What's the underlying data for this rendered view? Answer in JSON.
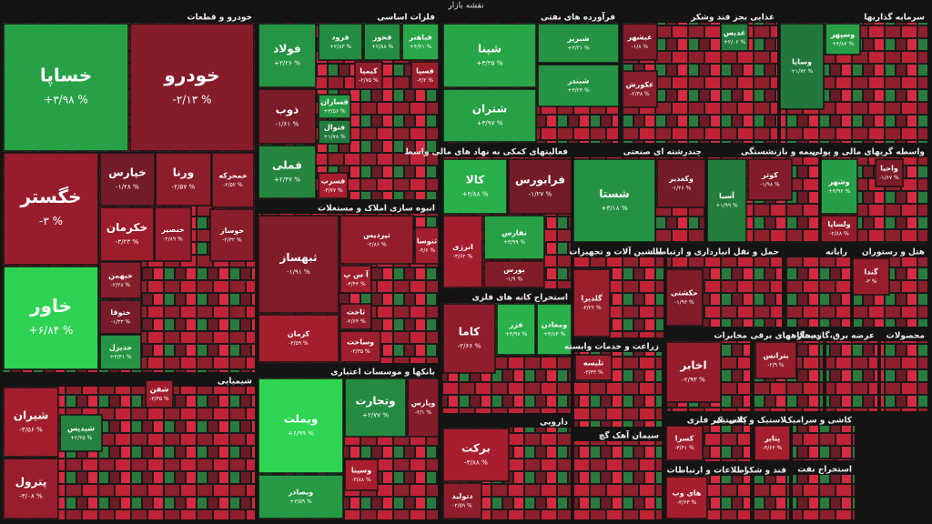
{
  "chart_data": {
    "type": "treemap",
    "title": "نقشه بازار",
    "sectors": [
      {
        "name": "خودرو و قطعات",
        "tiles": [
          {
            "name": "خساپا",
            "value": 3.98,
            "value_label": "+۳/۹۸ %"
          },
          {
            "name": "خودرو",
            "value": -2.13,
            "value_label": "-۲/۱۳ %"
          },
          {
            "name": "خگستر",
            "value": -3,
            "value_label": "-۳ %"
          },
          {
            "name": "خاور",
            "value": 6.84,
            "value_label": "+۶/۸۴ %"
          },
          {
            "name": "خپارس",
            "value": -1.28,
            "value_label": "-۱/۲۸ %"
          },
          {
            "name": "ورنا",
            "value": -2.57,
            "value_label": "-۲/۵۷ %"
          },
          {
            "name": "خمحرکه",
            "value": -2.52,
            "value_label": "-۲/۵۲ %"
          },
          {
            "name": "خکرمان",
            "value": -3.23,
            "value_label": "-۳/۲۳ %"
          },
          {
            "name": "خنصیر",
            "value": -2.89,
            "value_label": "-۲/۸۹ %"
          },
          {
            "name": "خوساز",
            "value": -2.32,
            "value_label": "-۲/۳۲ %"
          },
          {
            "name": "خبهمن",
            "value": -2.28,
            "value_label": "-۲/۲۸ %"
          },
          {
            "name": "ختوقا",
            "value": -1.33,
            "value_label": "-۱/۳۳ %"
          },
          {
            "name": "خدیزل",
            "value": 3.31,
            "value_label": "+۳/۳۱ %"
          }
        ]
      },
      {
        "name": "فلزات اساسی",
        "tiles": [
          {
            "name": "فولاد",
            "value": 3.26,
            "value_label": "+۳/۲۶ %"
          },
          {
            "name": "ذوب",
            "value": -1.61,
            "value_label": "-۱/۶۱ %"
          },
          {
            "name": "فملی",
            "value": 2.47,
            "value_label": "+۲/۴۷ %"
          },
          {
            "name": "فرود",
            "value": 2.83,
            "value_label": "+۲/۸۳ %"
          },
          {
            "name": "فخوز",
            "value": 2.88,
            "value_label": "+۲/۸۸ %"
          },
          {
            "name": "فباهنر",
            "value": 4.31,
            "value_label": "+۴/۳۱ %"
          },
          {
            "name": "کیمیا",
            "value": -2.75,
            "value_label": "-۲/۷۵ %"
          },
          {
            "name": "فسپا",
            "value": -3.2,
            "value_label": "-۳/۲ %"
          },
          {
            "name": "فسازان",
            "value": 3.56,
            "value_label": "+۳/۵۶ %"
          },
          {
            "name": "فنوال",
            "value": 1.78,
            "value_label": "+۱/۷۸ %"
          },
          {
            "name": "فسرب",
            "value": -3.77,
            "value_label": "-۳/۷۷ %"
          }
        ]
      },
      {
        "name": "انبوه سازی املاک و مستغلات",
        "tiles": [
          {
            "name": "ثبهساز",
            "value": -1.91,
            "value_label": "-۱/۹۱ %"
          },
          {
            "name": "کرمان",
            "value": -3.59,
            "value_label": "-۳/۵۹ %"
          },
          {
            "name": "ثپردیس",
            "value": -2.86,
            "value_label": "-۲/۸۶ %"
          },
          {
            "name": "ثنوسا",
            "value": -3.6,
            "value_label": "-۳/۶ %"
          },
          {
            "name": "آ س پ",
            "value": -3.43,
            "value_label": "-۳/۴۳ %"
          },
          {
            "name": "ثاخت",
            "value": -2.64,
            "value_label": "-۲/۶۴ %"
          },
          {
            "name": "وساخت",
            "value": -3.35,
            "value_label": "-۳/۳۵ %"
          }
        ]
      },
      {
        "name": "بانکها و موسسات اعتباری",
        "tiles": [
          {
            "name": "وبملت",
            "value": 6.99,
            "value_label": "+۶/۹۹ %"
          },
          {
            "name": "وتجارت",
            "value": 2.77,
            "value_label": "+۲/۷۷ %"
          },
          {
            "name": "وپارس",
            "value": -2.1,
            "value_label": "-۲/۱ %"
          },
          {
            "name": "وبصادر",
            "value": 3.59,
            "value_label": "+۳/۵۹ %"
          },
          {
            "name": "وسینا",
            "value": -3.88,
            "value_label": "-۳/۸۸ %"
          }
        ]
      },
      {
        "name": "فرآورده های نفتی",
        "tiles": [
          {
            "name": "شپنا",
            "value": 4.25,
            "value_label": "+۴/۲۵ %"
          },
          {
            "name": "شتران",
            "value": 3.97,
            "value_label": "+۳/۹۷ %"
          },
          {
            "name": "شبریز",
            "value": 3.21,
            "value_label": "+۳/۲۱ %"
          },
          {
            "name": "شبندر",
            "value": 3.23,
            "value_label": "+۳/۲۳ %"
          }
        ]
      },
      {
        "name": "فعالیتهای کمکی به نهاد های مالی واسط",
        "tiles": [
          {
            "name": "کالا",
            "value": 4.88,
            "value_label": "+۴/۸۸ %"
          },
          {
            "name": "فرابورس",
            "value": -1.27,
            "value_label": "-۱/۲۷ %"
          },
          {
            "name": "انرژی",
            "value": -3.62,
            "value_label": "-۳/۶۲ %"
          },
          {
            "name": "نفارس",
            "value": 3.99,
            "value_label": "+۳/۹۹ %"
          },
          {
            "name": "بورس",
            "value": -1.9,
            "value_label": "-۱/۹ %"
          }
        ]
      },
      {
        "name": "استخراج کانه های فلزی",
        "tiles": [
          {
            "name": "کاما",
            "value": -2.66,
            "value_label": "-۲/۶۶ %"
          },
          {
            "name": "فزر",
            "value": 4.97,
            "value_label": "+۴/۹۷ %"
          },
          {
            "name": "ومعادن",
            "value": 4.84,
            "value_label": "+۴/۸۴ %"
          }
        ]
      },
      {
        "name": "دارویی",
        "tiles": [
          {
            "name": "برکت",
            "value": -3.88,
            "value_label": "-۳/۸۸ %"
          },
          {
            "name": "دتولید",
            "value": -2.59,
            "value_label": "-۲/۵۹ %"
          }
        ]
      },
      {
        "name": "غذایی بجز قند وشکر",
        "tiles": [
          {
            "name": "غبشهر",
            "value": -1.8,
            "value_label": "-۱/۸ %"
          },
          {
            "name": "غدیس",
            "value": 2.06,
            "value_label": "+۲/۰۶ %"
          },
          {
            "name": "غکورش",
            "value": -2.38,
            "value_label": "-۲/۳۸ %"
          }
        ]
      },
      {
        "name": "سرمایه گذاریها",
        "tiles": [
          {
            "name": "وسایا",
            "value": 1.72,
            "value_label": "+۱/۷۲ %"
          },
          {
            "name": "وسپهر",
            "value": 3.82,
            "value_label": "+۳/۸۲ %"
          }
        ]
      },
      {
        "name": "چندرشته ای صنعتی",
        "tiles": [
          {
            "name": "شستا",
            "value": 3.18,
            "value_label": "+۳/۱۸ %"
          },
          {
            "name": "وکغدیر",
            "value": -1.26,
            "value_label": "-۱/۲۶ %"
          }
        ]
      },
      {
        "name": "بیمه و بازنشستگی",
        "tiles": [
          {
            "name": "آسیا",
            "value": 1.99,
            "value_label": "+۱/۹۹ %"
          },
          {
            "name": "کوثر",
            "value": -1.98,
            "value_label": "-۱/۹۸ %"
          }
        ]
      },
      {
        "name": "واسطه گریهای مالی و پولی",
        "tiles": [
          {
            "name": "وشهر",
            "value": 3.92,
            "value_label": "+۳/۹۲ %"
          },
          {
            "name": "واحیا",
            "value": -1.67,
            "value_label": "-۱/۶۷ %"
          },
          {
            "name": "ولساپا",
            "value": -2.88,
            "value_label": "-۲/۸۸ %"
          }
        ]
      },
      {
        "name": "ماشین آلات و تجهیزات",
        "tiles": [
          {
            "name": "گلدیرا",
            "value": -3.22,
            "value_label": "-۳/۲۲ %"
          }
        ]
      },
      {
        "name": "حمل و نقل انبارداری و ارتباطات",
        "tiles": [
          {
            "name": "حکشتی",
            "value": -1.93,
            "value_label": "-۱/۹۳ %"
          }
        ]
      },
      {
        "name": "رایانه",
        "tiles": []
      },
      {
        "name": "هتل و رستوران",
        "tiles": [
          {
            "name": "گندا",
            "value": -3,
            "value_label": "-۳ %"
          }
        ]
      },
      {
        "name": "زراعت و خدمات وابسته",
        "tiles": [
          {
            "name": "تلیسه",
            "value": -3.33,
            "value_label": "-۳/۳۳ %"
          }
        ]
      },
      {
        "name": "مخابرات",
        "tiles": [
          {
            "name": "اخابر",
            "value": -2.93,
            "value_label": "-۲/۹۳ %"
          }
        ]
      },
      {
        "name": "دستگاههای برقی",
        "tiles": [
          {
            "name": "بترانس",
            "value": -2.9,
            "value_label": "-۲/۹ %"
          }
        ]
      },
      {
        "name": "عرضه برق،گاز،بخار",
        "tiles": []
      },
      {
        "name": "محصولات",
        "tiles": []
      },
      {
        "name": "کانی غیر فلزی",
        "tiles": [
          {
            "name": "کسرا",
            "value": -3.41,
            "value_label": "-۳/۴۱ %"
          }
        ]
      },
      {
        "name": "لاستیک و پلاستیک",
        "tiles": [
          {
            "name": "پتایر",
            "value": -3.63,
            "value_label": "-۳/۶۳ %"
          }
        ]
      },
      {
        "name": "کاشی و سرامیک",
        "tiles": []
      },
      {
        "name": "سیمان آهک گچ",
        "tiles": []
      },
      {
        "name": "اطلاعات و ارتباطات",
        "tiles": [
          {
            "name": "های وب",
            "value": -3.63,
            "value_label": "-۳/۶۳ %"
          }
        ]
      },
      {
        "name": "قند و شکر",
        "tiles": []
      },
      {
        "name": "استخراج نفت",
        "tiles": []
      },
      {
        "name": "شیمیایی",
        "tiles": [
          {
            "name": "شیران",
            "value": -3.56,
            "value_label": "-۳/۵۶ %"
          },
          {
            "name": "پترول",
            "value": -3.08,
            "value_label": "-۳/۰۸ %"
          },
          {
            "name": "شپدیس",
            "value": 2.25,
            "value_label": "+۲/۲۵ %"
          },
          {
            "name": "شفن",
            "value": -3.35,
            "value_label": "-۳/۳۵ %"
          }
        ]
      }
    ]
  }
}
